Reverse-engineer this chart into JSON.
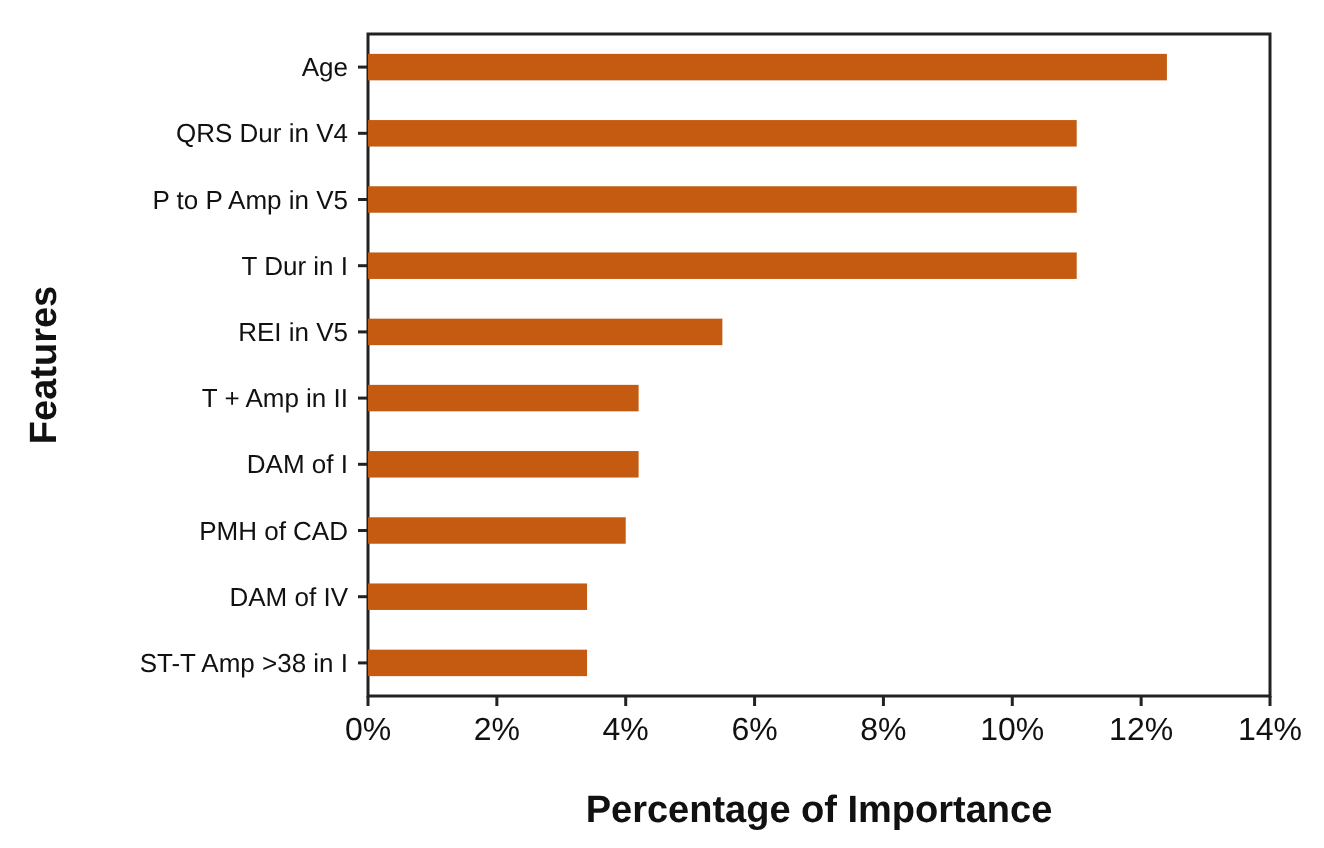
{
  "chart_data": {
    "type": "bar",
    "orientation": "horizontal",
    "xlabel": "Percentage of Importance",
    "ylabel": "Features",
    "categories": [
      "Age",
      "QRS Dur in V4",
      "P to P Amp in V5",
      "T Dur in I",
      "REI in V5",
      "T + Amp in II",
      "DAM of I",
      "PMH of CAD",
      "DAM of IV",
      "ST-T Amp >38 in I"
    ],
    "values": [
      12.4,
      11.0,
      11.0,
      11.0,
      5.5,
      4.2,
      4.2,
      4.0,
      3.4,
      3.4
    ],
    "color": "#c55a11",
    "xlim": [
      0,
      14
    ],
    "xticks": [
      {
        "value": 0,
        "label": "0%"
      },
      {
        "value": 2,
        "label": "2%"
      },
      {
        "value": 4,
        "label": "4%"
      },
      {
        "value": 6,
        "label": "6%"
      },
      {
        "value": 8,
        "label": "8%"
      },
      {
        "value": 10,
        "label": "10%"
      },
      {
        "value": 12,
        "label": "12%"
      },
      {
        "value": 14,
        "label": "14%"
      }
    ],
    "grid": false
  }
}
